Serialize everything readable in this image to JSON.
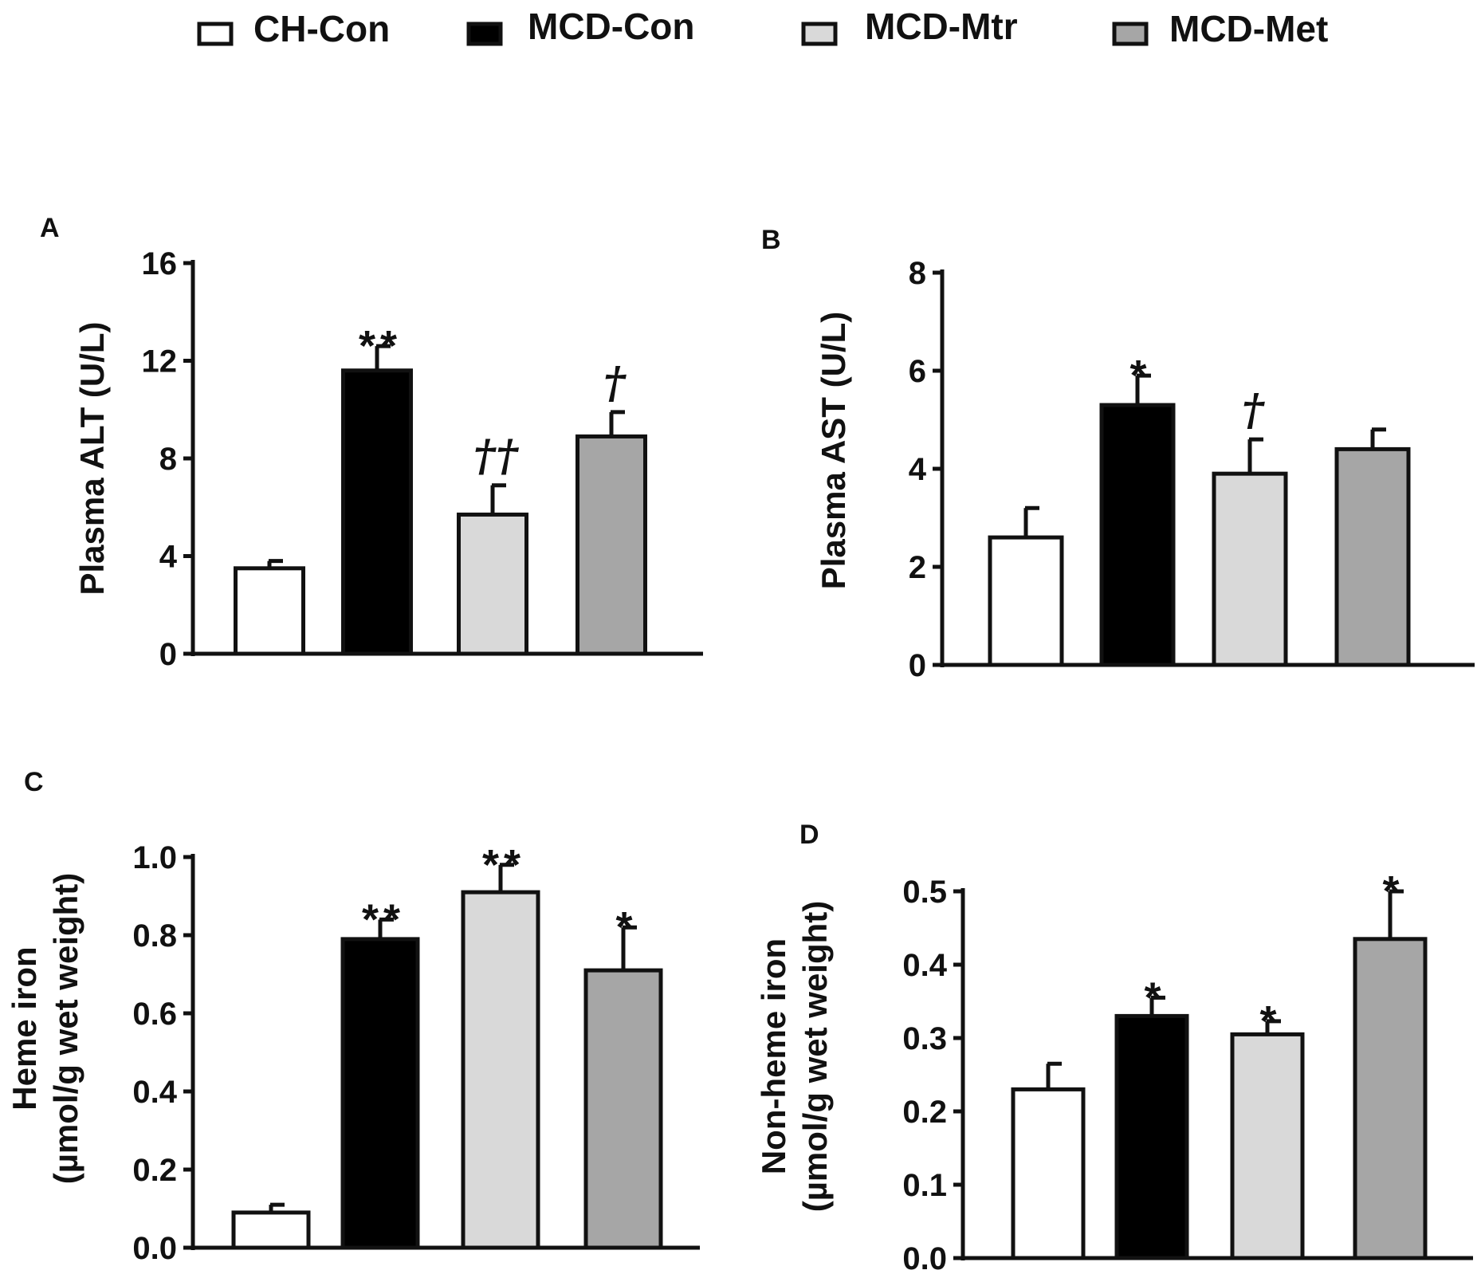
{
  "legend": [
    {
      "label": "CH-Con",
      "color": "#ffffff"
    },
    {
      "label": "MCD-Con",
      "color": "#000000"
    },
    {
      "label": "MCD-Mtr",
      "color": "#d9d9d9"
    },
    {
      "label": "MCD-Met",
      "color": "#a6a6a6"
    }
  ],
  "chart_data": [
    {
      "panel": "A",
      "type": "bar",
      "title": "",
      "xlabel": "",
      "ylabel": "Plasma ALT (U/L)",
      "ylabel_lines": [
        "Plasma ALT (U/L)"
      ],
      "ylim": [
        0,
        16
      ],
      "yticks": [
        0,
        4,
        8,
        12,
        16
      ],
      "ytick_labels": [
        "0",
        "4",
        "8",
        "12",
        "16"
      ],
      "categories": [
        "CH-Con",
        "MCD-Con",
        "MCD-Mtr",
        "MCD-Met"
      ],
      "values": [
        3.5,
        11.6,
        5.7,
        8.9
      ],
      "errors": [
        0.3,
        1.0,
        1.2,
        1.0
      ],
      "annotations": [
        "",
        "**",
        "††",
        "†"
      ]
    },
    {
      "panel": "B",
      "type": "bar",
      "title": "",
      "xlabel": "",
      "ylabel": "Plasma AST (U/L)",
      "ylabel_lines": [
        "Plasma AST (U/L)"
      ],
      "ylim": [
        0,
        8
      ],
      "yticks": [
        0,
        2,
        4,
        6,
        8
      ],
      "ytick_labels": [
        "0",
        "2",
        "4",
        "6",
        "8"
      ],
      "categories": [
        "CH-Con",
        "MCD-Con",
        "MCD-Mtr",
        "MCD-Met"
      ],
      "values": [
        2.6,
        5.3,
        3.9,
        4.4
      ],
      "errors": [
        0.6,
        0.6,
        0.7,
        0.4
      ],
      "annotations": [
        "",
        "*",
        "†",
        ""
      ]
    },
    {
      "panel": "C",
      "type": "bar",
      "title": "",
      "xlabel": "",
      "ylabel": "Heme iron (µmol/g wet weight)",
      "ylabel_lines": [
        "Heme iron",
        "(µmol/g wet weight)"
      ],
      "ylim": [
        0,
        1.0
      ],
      "yticks": [
        0,
        0.2,
        0.4,
        0.6,
        0.8,
        1.0
      ],
      "ytick_labels": [
        "0.0",
        "0.2",
        "0.4",
        "0.6",
        "0.8",
        "1.0"
      ],
      "categories": [
        "CH-Con",
        "MCD-Con",
        "MCD-Mtr",
        "MCD-Met"
      ],
      "values": [
        0.09,
        0.79,
        0.91,
        0.71
      ],
      "errors": [
        0.02,
        0.05,
        0.07,
        0.11
      ],
      "annotations": [
        "",
        "**",
        "**",
        "*"
      ]
    },
    {
      "panel": "D",
      "type": "bar",
      "title": "",
      "xlabel": "",
      "ylabel": "Non-heme iron (µmol/g wet weight)",
      "ylabel_lines": [
        "Non-heme iron",
        "(µmol/g wet weight)"
      ],
      "ylim": [
        0,
        0.5
      ],
      "yticks": [
        0,
        0.1,
        0.2,
        0.3,
        0.4,
        0.5
      ],
      "ytick_labels": [
        "0.0",
        "0.1",
        "0.2",
        "0.3",
        "0.4",
        "0.5"
      ],
      "categories": [
        "CH-Con",
        "MCD-Con",
        "MCD-Mtr",
        "MCD-Met"
      ],
      "values": [
        0.23,
        0.33,
        0.305,
        0.435
      ],
      "errors": [
        0.035,
        0.025,
        0.018,
        0.065
      ],
      "annotations": [
        "",
        "*",
        "*",
        "*"
      ]
    }
  ]
}
